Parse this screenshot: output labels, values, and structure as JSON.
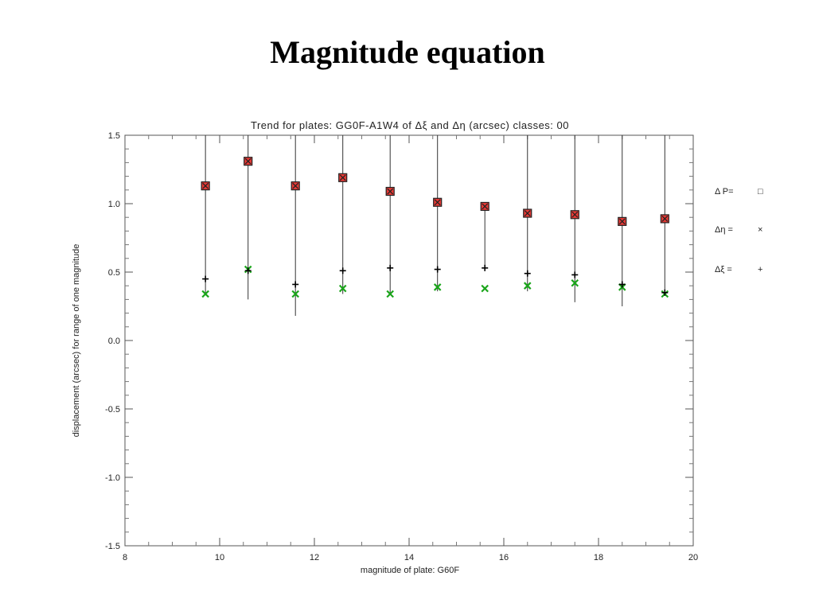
{
  "slide": {
    "title": "Magnitude equation"
  },
  "chart_data": {
    "type": "scatter",
    "title": "Trend for plates: GG0F-A1W4 of Δξ and Δη (arcsec) classes: 00",
    "xlabel": "magnitude of plate: G60F",
    "ylabel": "displacement (arcsec) for range of one magnitude",
    "xlim": [
      8,
      20
    ],
    "ylim": [
      -1.5,
      1.5
    ],
    "x_ticks": [
      8,
      10,
      12,
      14,
      16,
      18,
      20
    ],
    "y_ticks": [
      -1.5,
      -1.0,
      -0.5,
      0.0,
      0.5,
      1.0,
      1.5
    ],
    "x_tick_labels": [
      "8",
      "10",
      "12",
      "14",
      "16",
      "18",
      "20"
    ],
    "y_tick_labels": [
      "-1.5",
      "-1.0",
      "-0.5",
      "0.0",
      "0.5",
      "1.0",
      "1.5"
    ],
    "grid": false,
    "legend_position": "right",
    "x": [
      9.7,
      10.6,
      11.6,
      12.6,
      13.6,
      14.6,
      15.6,
      16.5,
      17.5,
      18.5,
      19.4
    ],
    "series": [
      {
        "name": "Δ P",
        "marker": "square",
        "color": "#e53935",
        "values": [
          1.13,
          1.31,
          1.13,
          1.19,
          1.09,
          1.01,
          0.98,
          0.93,
          0.92,
          0.87,
          0.89
        ]
      },
      {
        "name": "Δη",
        "marker": "x",
        "color": "#1aa51a",
        "values": [
          0.34,
          0.52,
          0.34,
          0.38,
          0.34,
          0.39,
          0.38,
          0.4,
          0.42,
          0.39,
          0.34
        ]
      },
      {
        "name": "Δξ",
        "marker": "plus",
        "color": "#000000",
        "values": [
          0.45,
          0.51,
          0.41,
          0.51,
          0.53,
          0.52,
          0.53,
          0.49,
          0.48,
          0.41,
          0.35
        ]
      }
    ],
    "error_bars": {
      "low": [
        0.34,
        0.3,
        0.18,
        0.34,
        0.34,
        0.36,
        0.52,
        0.36,
        0.28,
        0.25,
        0.33
      ],
      "high": [
        1.5,
        1.5,
        1.5,
        1.5,
        1.5,
        1.5,
        1.01,
        1.5,
        1.5,
        1.5,
        1.5
      ]
    },
    "legend": [
      {
        "label": "Δ  P=",
        "symbol": "□",
        "marker": "square"
      },
      {
        "label": "Δη   =",
        "symbol": "×",
        "marker": "x"
      },
      {
        "label": "Δξ   =",
        "symbol": "+",
        "marker": "plus"
      }
    ]
  }
}
